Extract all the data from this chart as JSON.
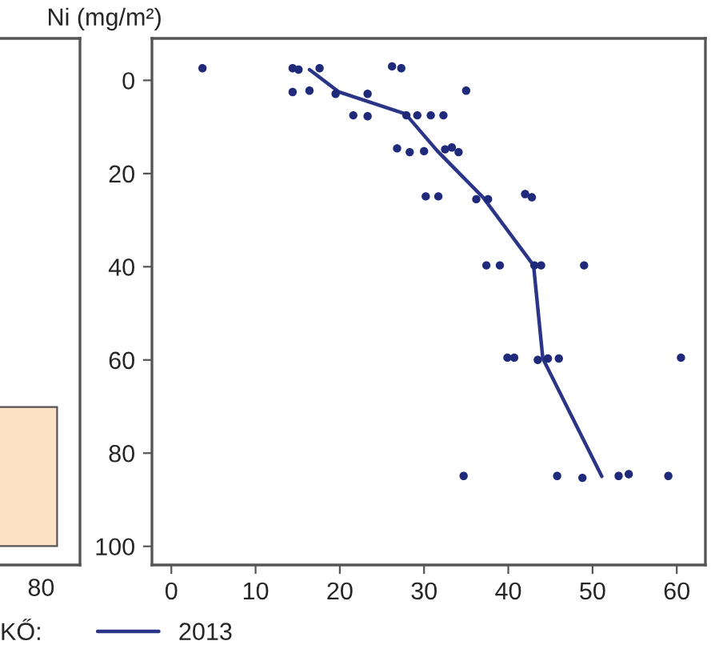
{
  "chart_data": [
    {
      "type": "other",
      "annotations": [
        "80"
      ]
    },
    {
      "type": "scatter",
      "title": "Ni (mg/m²)",
      "legend_title": "KŐ:",
      "legend": "bottom",
      "grid": false,
      "xlim": [
        -2.3,
        63.4
      ],
      "xticks": [
        0,
        10,
        20,
        30,
        40,
        50,
        60
      ],
      "ylim": [
        104,
        -9
      ],
      "yticks": [
        0,
        20,
        40,
        60,
        80,
        100
      ],
      "series": [
        {
          "color": "#1f2a7a",
          "marker": "circle",
          "x": [
            3.7,
            14.4,
            15.1,
            17.6,
            26.2,
            27.3,
            14.4,
            16.4,
            19.5,
            23.3,
            35.0,
            21.6,
            23.3,
            27.9,
            29.2,
            30.8,
            32.3,
            26.8,
            28.3,
            30.0,
            32.5,
            33.3,
            34.1,
            30.2,
            31.7,
            36.2,
            37.6,
            42.0,
            42.8,
            37.4,
            39.0,
            43.1,
            43.9,
            49.0,
            39.9,
            40.7,
            43.5,
            44.7,
            46.0,
            60.5,
            34.7,
            45.8,
            48.8,
            53.1,
            54.3,
            59.0
          ],
          "values": [
            -2.6,
            -2.6,
            -2.3,
            -2.6,
            -3,
            -2.6,
            2.5,
            2.2,
            2.9,
            2.9,
            2.2,
            7.5,
            7.7,
            7.5,
            7.5,
            7.5,
            7.5,
            14.6,
            15.4,
            15.2,
            14.8,
            14.4,
            15.4,
            24.9,
            24.9,
            25.5,
            25.5,
            24.4,
            25.1,
            39.7,
            39.7,
            39.7,
            39.7,
            39.7,
            59.5,
            59.5,
            60.0,
            59.7,
            59.7,
            59.5,
            84.9,
            84.9,
            85.3,
            84.9,
            84.5,
            84.9
          ]
        },
        {
          "type": "line",
          "name": "2013",
          "color": "#2b3588",
          "line_style": "solid",
          "marker": "none",
          "x": [
            16.4,
            19.9,
            27.8,
            31.6,
            37.0,
            43.0,
            44.1,
            51.1
          ],
          "values": [
            -2.3,
            2.5,
            7.2,
            15.2,
            25.1,
            39.7,
            59.7,
            85.0
          ]
        }
      ]
    }
  ]
}
